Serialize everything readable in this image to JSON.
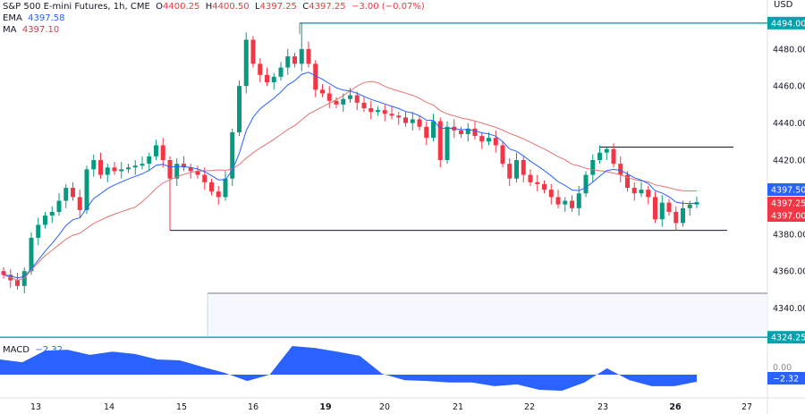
{
  "header": {
    "symbol": "S&P 500 E-mini Futures, 1h, CME",
    "o_label": "O",
    "o": "4400.25",
    "h_label": "H",
    "h": "4400.50",
    "l_label": "L",
    "l": "4397.25",
    "c_label": "C",
    "c": "4397.25",
    "change": "−3.00 (−0.07%)",
    "ema_label": "EMA",
    "ema": "4397.58",
    "ma_label": "MA",
    "ma": "4397.10",
    "macd_label": "MACD",
    "macd": "−2.32"
  },
  "currency": "USD",
  "colors": {
    "up": "#089981",
    "down": "#f23645",
    "ema": "#2962ff",
    "ma": "#e57373",
    "macd": "#2962ff",
    "level": "#00a2ad"
  },
  "chart_data": {
    "type": "candlestick",
    "timeframe": "1h",
    "y_ticks": [
      "4480.00",
      "4460.00",
      "4440.00",
      "4420.00",
      "4380.00",
      "4360.00",
      "4340.00"
    ],
    "ylim": [
      4322,
      4500
    ],
    "x_ticks": [
      {
        "label": "13",
        "bold": false
      },
      {
        "label": "14",
        "bold": false
      },
      {
        "label": "15",
        "bold": false
      },
      {
        "label": "16",
        "bold": false
      },
      {
        "label": "19",
        "bold": true
      },
      {
        "label": "20",
        "bold": false
      },
      {
        "label": "21",
        "bold": false
      },
      {
        "label": "22",
        "bold": false
      },
      {
        "label": "23",
        "bold": false
      },
      {
        "label": "26",
        "bold": true
      },
      {
        "label": "27",
        "bold": false
      }
    ],
    "close": [
      4358,
      4355,
      4352,
      4360,
      4378,
      4385,
      4390,
      4392,
      4398,
      4405,
      4400,
      4393,
      4415,
      4420,
      4412,
      4416,
      4414,
      4415,
      4416,
      4417,
      4418,
      4422,
      4428,
      4420,
      4410,
      4418,
      4416,
      4414,
      4412,
      4408,
      4403,
      4400,
      4410,
      4435,
      4460,
      4485,
      4472,
      4466,
      4462,
      4465,
      4470,
      4476,
      4472,
      4480,
      4472,
      4458,
      4456,
      4452,
      4450,
      4453,
      4455,
      4451,
      4448,
      4446,
      4447,
      4445,
      4444,
      4443,
      4440,
      4442,
      4438,
      4432,
      4441,
      4420,
      4438,
      4436,
      4434,
      4437,
      4433,
      4430,
      4432,
      4428,
      4418,
      4410,
      4420,
      4412,
      4408,
      4407,
      4404,
      4400,
      4396,
      4398,
      4394,
      4402,
      4412,
      4420,
      4424,
      4426,
      4418,
      4412,
      4405,
      4402,
      4404,
      4400,
      4388,
      4397,
      4392,
      4386,
      4394,
      4396,
      4397.25
    ],
    "levels": {
      "resistance_top": 4494.0,
      "resistance_mid": 4427,
      "support": 4382,
      "zone_top": 4348,
      "zone_bottom": 4324.25
    },
    "price_labels": [
      {
        "value": "4494.00",
        "color": "#00a2ad"
      },
      {
        "value": "4397.50",
        "color": "#2962ff"
      },
      {
        "value": "4397.25",
        "color": "#f23645"
      },
      {
        "value": "4397.00",
        "color": "#f23645"
      },
      {
        "value": "4324.25",
        "color": "#00a2ad"
      }
    ],
    "macd": {
      "values": [
        5.0,
        4.1,
        7.9,
        8.2,
        6.5,
        7.6,
        6.8,
        5.0,
        4.7,
        2.6,
        0.6,
        -2.1,
        0,
        9.4,
        8.8,
        7.6,
        6.2,
        0.3,
        -1.8,
        -2.1,
        -2.6,
        -2.6,
        -3.8,
        -3.2,
        -5.0,
        -5.3,
        -2.6,
        2.1,
        -1.8,
        -3.8,
        -3.8,
        -2.32
      ],
      "x_fraction_note_free": true,
      "current": "−2.32",
      "zero_label": "0.00"
    }
  }
}
